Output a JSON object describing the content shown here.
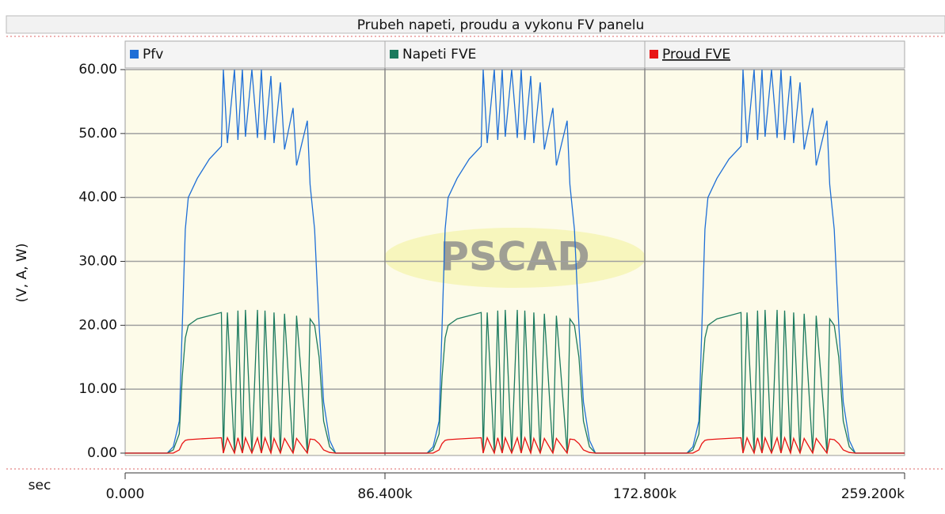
{
  "chart_data": {
    "type": "line",
    "title": "Prubeh napeti, proudu a vykonu FV panelu",
    "ylabel": "(V, A, W)",
    "xlabel": "sec",
    "watermark": "PSCAD",
    "xlim": [
      0,
      259200
    ],
    "ylim": [
      0,
      60
    ],
    "xticks": [
      {
        "value": 0,
        "label": "0.000"
      },
      {
        "value": 86400,
        "label": "86.400k"
      },
      {
        "value": 172800,
        "label": "172.800k"
      },
      {
        "value": 259200,
        "label": "259.200k"
      }
    ],
    "yticks": [
      {
        "value": 0,
        "label": "0.00"
      },
      {
        "value": 10,
        "label": "10.00"
      },
      {
        "value": 20,
        "label": "20.00"
      },
      {
        "value": 30,
        "label": "30.00"
      },
      {
        "value": 40,
        "label": "40.00"
      },
      {
        "value": 50,
        "label": "50.00"
      },
      {
        "value": 60,
        "label": "60.00"
      }
    ],
    "grid": true,
    "x": [
      0,
      14000,
      16000,
      18000,
      19000,
      20000,
      21000,
      24000,
      28000,
      32000,
      32660,
      34000,
      36350,
      37500,
      38980,
      40000,
      42140,
      44000,
      45300,
      46500,
      48470,
      49500,
      51630,
      53000,
      55840,
      57000,
      60580,
      61500,
      63000,
      64500,
      66000,
      68000,
      70000,
      86400,
      100400,
      102400,
      104400,
      105400,
      106400,
      107400,
      110400,
      114400,
      118400,
      119060,
      120400,
      122750,
      123900,
      125380,
      126400,
      128540,
      130400,
      131700,
      132900,
      134870,
      135900,
      138030,
      139400,
      142240,
      143400,
      146980,
      147900,
      149400,
      150900,
      152400,
      154400,
      156400,
      172800,
      186800,
      188800,
      190800,
      191800,
      192800,
      193800,
      196800,
      200800,
      204800,
      205460,
      206800,
      209150,
      210300,
      211780,
      212800,
      214940,
      216800,
      218100,
      219300,
      221270,
      222300,
      224430,
      225800,
      228640,
      229800,
      233380,
      234300,
      235800,
      237300,
      238800,
      240800,
      242800,
      259200
    ],
    "series": [
      {
        "name": "Pfv",
        "color": "#1f6fd6",
        "values": [
          0,
          0,
          1,
          5,
          20,
          35,
          40,
          43,
          46,
          48,
          60,
          48.5,
          60,
          49,
          60,
          49.5,
          60,
          49.3,
          60,
          49,
          59,
          48.5,
          58,
          47.5,
          54,
          45,
          52,
          42,
          35,
          20,
          8,
          2,
          0,
          0,
          0,
          1,
          5,
          20,
          35,
          40,
          43,
          46,
          48,
          60,
          48.5,
          60,
          49,
          60,
          49.5,
          60,
          49.3,
          60,
          49,
          59,
          48.5,
          58,
          47.5,
          54,
          45,
          52,
          42,
          35,
          20,
          8,
          2,
          0,
          0,
          0,
          1,
          5,
          20,
          35,
          40,
          43,
          46,
          48,
          60,
          48.5,
          60,
          49,
          60,
          49.5,
          60,
          49.3,
          60,
          49,
          59,
          48.5,
          58,
          47.5,
          54,
          45,
          52,
          42,
          35,
          20,
          8,
          2,
          0,
          0
        ]
      },
      {
        "name": "Napeti FVE",
        "color": "#1b7a5e",
        "values": [
          0,
          0,
          0.5,
          3,
          12,
          18,
          20,
          21,
          21.5,
          22,
          0,
          22,
          0,
          22.3,
          0,
          22.4,
          0,
          22.4,
          0,
          22.3,
          0,
          22,
          0,
          21.8,
          0,
          21.5,
          0,
          21,
          20,
          15,
          5,
          1,
          0,
          0,
          0,
          0.5,
          3,
          12,
          18,
          20,
          21,
          21.5,
          22,
          0,
          22,
          0,
          22.3,
          0,
          22.4,
          0,
          22.4,
          0,
          22.3,
          0,
          22,
          0,
          21.8,
          0,
          21.5,
          0,
          21,
          20,
          15,
          5,
          1,
          0,
          0,
          0,
          0.5,
          3,
          12,
          18,
          20,
          21,
          21.5,
          22,
          0,
          22,
          0,
          22.3,
          0,
          22.4,
          0,
          22.4,
          0,
          22.3,
          0,
          22,
          0,
          21.8,
          0,
          21.5,
          0,
          21,
          20,
          15,
          5,
          1,
          0,
          0
        ]
      },
      {
        "name": "Proud FVE",
        "color": "#e81414",
        "values": [
          0,
          0,
          0,
          0.5,
          1.5,
          2,
          2.1,
          2.2,
          2.3,
          2.4,
          0,
          2.4,
          0,
          2.4,
          0,
          2.4,
          0,
          2.4,
          0,
          2.4,
          0,
          2.3,
          0,
          2.3,
          0,
          2.3,
          0,
          2.2,
          2.1,
          1.5,
          0.5,
          0.1,
          0,
          0,
          0,
          0,
          0.5,
          1.5,
          2,
          2.1,
          2.2,
          2.3,
          2.4,
          0,
          2.4,
          0,
          2.4,
          0,
          2.4,
          0,
          2.4,
          0,
          2.4,
          0,
          2.3,
          0,
          2.3,
          0,
          2.3,
          0,
          2.2,
          2.1,
          1.5,
          0.5,
          0.1,
          0,
          0,
          0,
          0,
          0.5,
          1.5,
          2,
          2.1,
          2.2,
          2.3,
          2.4,
          0,
          2.4,
          0,
          2.4,
          0,
          2.4,
          0,
          2.4,
          0,
          2.4,
          0,
          2.3,
          0,
          2.3,
          0,
          2.3,
          0,
          2.2,
          2.1,
          1.5,
          0.5,
          0.1,
          0,
          0
        ]
      }
    ]
  }
}
